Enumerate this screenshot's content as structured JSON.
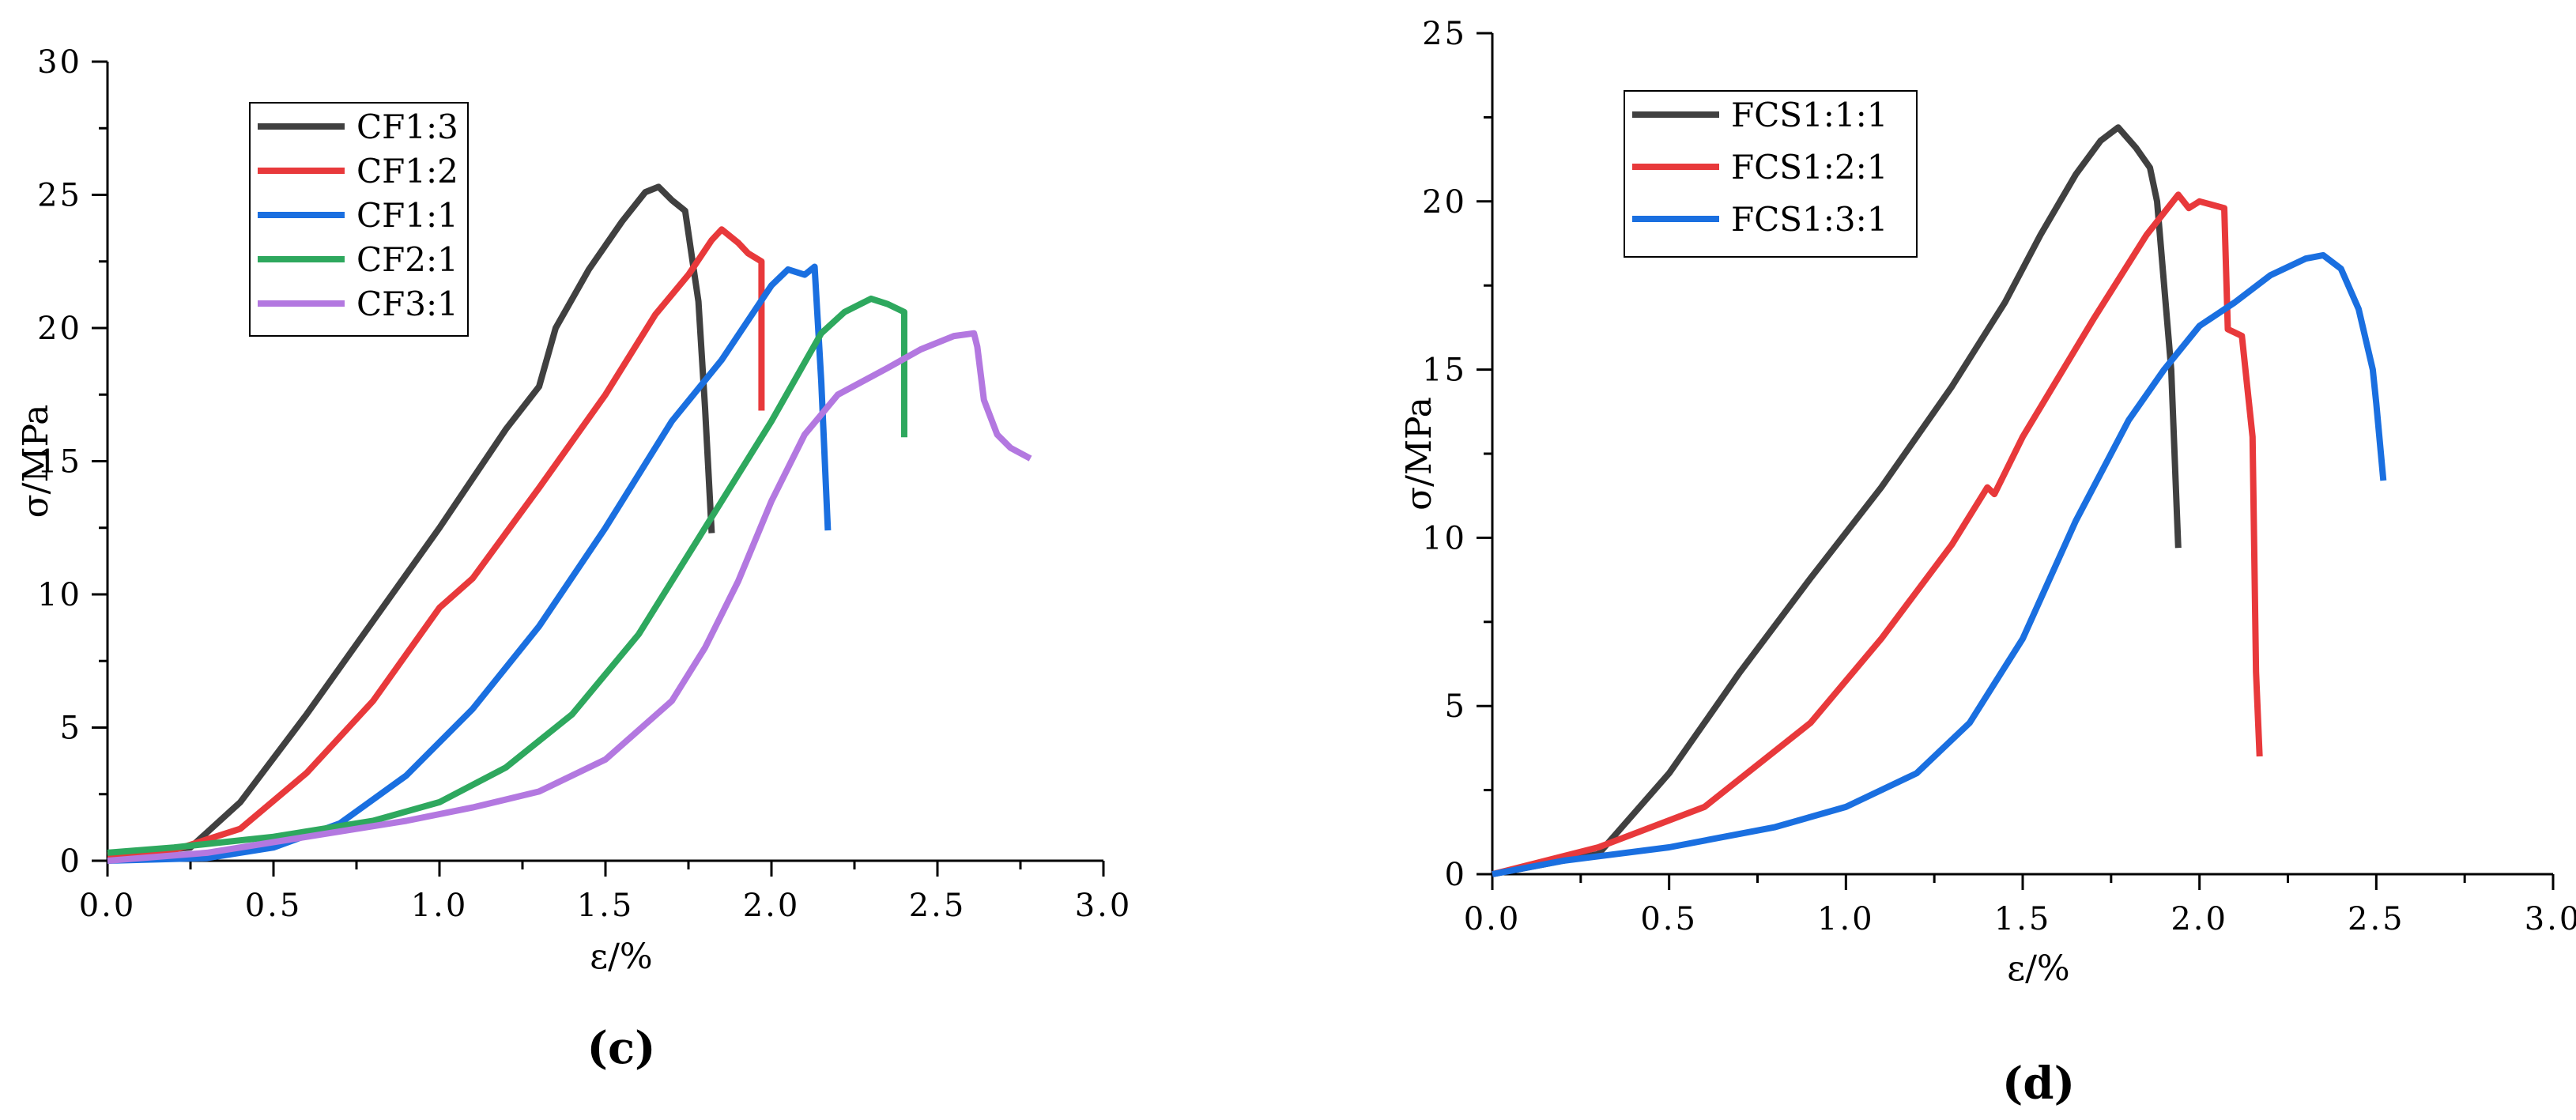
{
  "chart_data": [
    {
      "type": "line",
      "panel_label": "(c)",
      "xlabel": "ε/%",
      "ylabel": "σ/MPa",
      "xlim": [
        0,
        3
      ],
      "ylim": [
        0,
        30
      ],
      "xticks": [
        0,
        0.5,
        1,
        1.5,
        2,
        2.5,
        3
      ],
      "xtick_labels": [
        "0.0",
        "0.5",
        "1.0",
        "1.5",
        "2.0",
        "2.5",
        "3.0"
      ],
      "yticks": [
        0,
        5,
        10,
        15,
        20,
        25,
        30
      ],
      "ytick_labels": [
        "0",
        "5",
        "10",
        "15",
        "20",
        "25",
        "30"
      ],
      "grid": false,
      "legend_position": "top-left",
      "series": [
        {
          "name": "CF1:3",
          "color": "#404040",
          "x": [
            0,
            0.25,
            0.4,
            0.6,
            0.8,
            1.0,
            1.2,
            1.3,
            1.35,
            1.45,
            1.55,
            1.62,
            1.66,
            1.7,
            1.74,
            1.78,
            1.8,
            1.82
          ],
          "y": [
            0.2,
            0.5,
            2.2,
            5.5,
            9.0,
            12.5,
            16.2,
            17.8,
            20.0,
            22.2,
            24.0,
            25.1,
            25.3,
            24.8,
            24.4,
            21.0,
            17.0,
            12.3
          ]
        },
        {
          "name": "CF1:2",
          "color": "#e8393b",
          "x": [
            0,
            0.2,
            0.4,
            0.6,
            0.8,
            1.0,
            1.1,
            1.3,
            1.5,
            1.65,
            1.75,
            1.82,
            1.85,
            1.9,
            1.93,
            1.97,
            1.97
          ],
          "y": [
            0.2,
            0.4,
            1.2,
            3.3,
            6.0,
            9.5,
            10.6,
            14.0,
            17.5,
            20.5,
            22.0,
            23.3,
            23.7,
            23.2,
            22.8,
            22.5,
            16.9
          ]
        },
        {
          "name": "CF1:1",
          "color": "#1a6fe0",
          "x": [
            0,
            0.3,
            0.5,
            0.7,
            0.9,
            1.1,
            1.3,
            1.5,
            1.7,
            1.85,
            2.0,
            2.05,
            2.1,
            2.13,
            2.15,
            2.17
          ],
          "y": [
            0.0,
            0.1,
            0.5,
            1.4,
            3.2,
            5.7,
            8.8,
            12.5,
            16.5,
            18.8,
            21.6,
            22.2,
            22.0,
            22.3,
            18.0,
            12.4
          ]
        },
        {
          "name": "CF2:1",
          "color": "#2ea85e",
          "x": [
            0,
            0.2,
            0.5,
            0.8,
            1.0,
            1.2,
            1.4,
            1.6,
            1.8,
            2.0,
            2.15,
            2.22,
            2.3,
            2.35,
            2.4,
            2.4
          ],
          "y": [
            0.3,
            0.5,
            0.9,
            1.5,
            2.2,
            3.5,
            5.5,
            8.5,
            12.5,
            16.5,
            19.8,
            20.6,
            21.1,
            20.9,
            20.6,
            15.9
          ]
        },
        {
          "name": "CF3:1",
          "color": "#b378e0",
          "x": [
            0,
            0.3,
            0.6,
            0.9,
            1.1,
            1.3,
            1.5,
            1.7,
            1.8,
            1.9,
            2.0,
            2.1,
            2.2,
            2.35,
            2.45,
            2.55,
            2.61,
            2.62,
            2.64,
            2.68,
            2.72,
            2.78
          ],
          "y": [
            0.0,
            0.3,
            0.9,
            1.5,
            2.0,
            2.6,
            3.8,
            6.0,
            8.0,
            10.5,
            13.5,
            16.0,
            17.5,
            18.5,
            19.2,
            19.7,
            19.8,
            19.3,
            17.3,
            16.0,
            15.5,
            15.1
          ]
        }
      ]
    },
    {
      "type": "line",
      "panel_label": "(d)",
      "xlabel": "ε/%",
      "ylabel": "σ/MPa",
      "xlim": [
        0,
        3
      ],
      "ylim": [
        0,
        25
      ],
      "xticks": [
        0,
        0.5,
        1,
        1.5,
        2,
        2.5,
        3
      ],
      "xtick_labels": [
        "0.0",
        "0.5",
        "1.0",
        "1.5",
        "2.0",
        "2.5",
        "3.0"
      ],
      "yticks": [
        0,
        5,
        10,
        15,
        20,
        25
      ],
      "ytick_labels": [
        "0",
        "5",
        "10",
        "15",
        "20",
        "25"
      ],
      "grid": false,
      "legend_position": "top-left",
      "series": [
        {
          "name": "FCS1:1:1",
          "color": "#404040",
          "x": [
            0,
            0.3,
            0.5,
            0.7,
            0.9,
            1.1,
            1.3,
            1.45,
            1.55,
            1.65,
            1.72,
            1.77,
            1.82,
            1.86,
            1.88,
            1.92,
            1.94
          ],
          "y": [
            0.0,
            0.6,
            3.0,
            6.0,
            8.8,
            11.5,
            14.5,
            17.0,
            19.0,
            20.8,
            21.8,
            22.2,
            21.6,
            21.0,
            20.0,
            15.0,
            9.7
          ]
        },
        {
          "name": "FCS1:2:1",
          "color": "#e8393b",
          "x": [
            0,
            0.3,
            0.6,
            0.9,
            1.1,
            1.3,
            1.4,
            1.42,
            1.5,
            1.7,
            1.85,
            1.94,
            1.97,
            2.0,
            2.07,
            2.08,
            2.12,
            2.15,
            2.16,
            2.17
          ],
          "y": [
            0.0,
            0.8,
            2.0,
            4.5,
            7.0,
            9.8,
            11.5,
            11.3,
            13.0,
            16.5,
            19.0,
            20.2,
            19.8,
            20.0,
            19.8,
            16.2,
            16.0,
            13.0,
            6.0,
            3.5
          ]
        },
        {
          "name": "FCS1:3:1",
          "color": "#1a6fe0",
          "x": [
            0,
            0.2,
            0.5,
            0.8,
            1.0,
            1.2,
            1.35,
            1.5,
            1.65,
            1.8,
            1.9,
            2.0,
            2.1,
            2.2,
            2.3,
            2.35,
            2.4,
            2.45,
            2.49,
            2.5,
            2.52
          ],
          "y": [
            0.0,
            0.4,
            0.8,
            1.4,
            2.0,
            3.0,
            4.5,
            7.0,
            10.5,
            13.5,
            15.0,
            16.3,
            17.0,
            17.8,
            18.3,
            18.4,
            18.0,
            16.8,
            15.0,
            14.0,
            11.7
          ]
        }
      ]
    }
  ]
}
